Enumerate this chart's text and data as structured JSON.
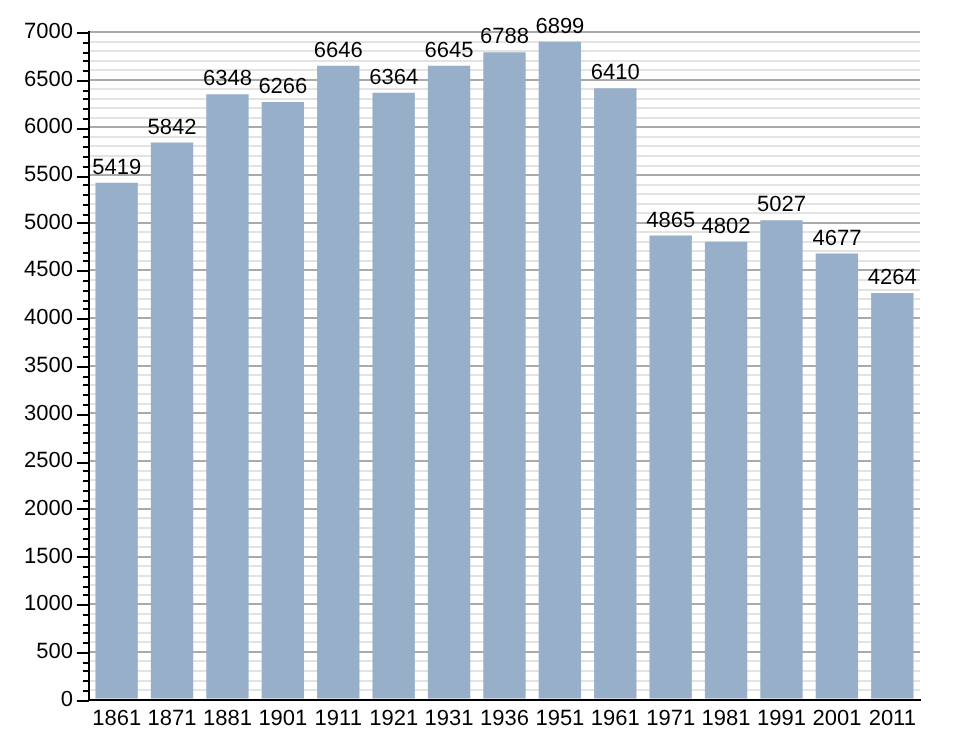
{
  "chart_data": {
    "type": "bar",
    "categories": [
      "1861",
      "1871",
      "1881",
      "1901",
      "1911",
      "1921",
      "1931",
      "1936",
      "1951",
      "1961",
      "1971",
      "1981",
      "1991",
      "2001",
      "2011"
    ],
    "values": [
      5419,
      5842,
      6348,
      6266,
      6646,
      6364,
      6645,
      6788,
      6899,
      6410,
      4865,
      4802,
      5027,
      4677,
      4264
    ],
    "color": "#98afc9",
    "ylim": [
      0,
      7000
    ],
    "yticks": [
      0,
      {
        "value": 100,
        "label": null
      },
      {
        "value": 200,
        "label": null
      },
      {
        "value": 300,
        "label": null
      },
      {
        "value": 400,
        "label": null
      },
      500,
      {
        "value": 600,
        "label": null
      },
      {
        "value": 700,
        "label": null
      },
      {
        "value": 800,
        "label": null
      },
      {
        "value": 900,
        "label": null
      },
      1000,
      {
        "value": 1100,
        "label": null
      },
      {
        "value": 1200,
        "label": null
      },
      {
        "value": 1300,
        "label": null
      },
      {
        "value": 1400,
        "label": null
      },
      1500,
      {
        "value": 1600,
        "label": null
      },
      {
        "value": 1700,
        "label": null
      },
      {
        "value": 1800,
        "label": null
      },
      {
        "value": 1900,
        "label": null
      },
      2000,
      {
        "value": 2100,
        "label": null
      },
      {
        "value": 2200,
        "label": null
      },
      {
        "value": 2300,
        "label": null
      },
      {
        "value": 2400,
        "label": null
      },
      2500,
      {
        "value": 2600,
        "label": null
      },
      {
        "value": 2700,
        "label": null
      },
      {
        "value": 2800,
        "label": null
      },
      {
        "value": 2900,
        "label": null
      },
      3000,
      {
        "value": 3100,
        "label": null
      },
      {
        "value": 3200,
        "label": null
      },
      {
        "value": 3300,
        "label": null
      },
      {
        "value": 3400,
        "label": null
      },
      3500,
      {
        "value": 3600,
        "label": null
      },
      {
        "value": 3700,
        "label": null
      },
      {
        "value": 3800,
        "label": null
      },
      {
        "value": 3900,
        "label": null
      },
      4000,
      {
        "value": 4100,
        "label": null
      },
      {
        "value": 4200,
        "label": null
      },
      {
        "value": 4300,
        "label": null
      },
      {
        "value": 4400,
        "label": null
      },
      4500,
      {
        "value": 4600,
        "label": null
      },
      {
        "value": 4700,
        "label": null
      },
      {
        "value": 4800,
        "label": null
      },
      {
        "value": 4900,
        "label": null
      },
      5000,
      {
        "value": 5100,
        "label": null
      },
      {
        "value": 5200,
        "label": null
      },
      {
        "value": 5300,
        "label": null
      },
      {
        "value": 5400,
        "label": null
      },
      5500,
      {
        "value": 5600,
        "label": null
      },
      {
        "value": 5700,
        "label": null
      },
      {
        "value": 5800,
        "label": null
      },
      {
        "value": 5900,
        "label": null
      },
      6000,
      {
        "value": 6100,
        "label": null
      },
      {
        "value": 6200,
        "label": null
      },
      {
        "value": 6300,
        "label": null
      },
      {
        "value": 6400,
        "label": null
      },
      6500,
      {
        "value": 6600,
        "label": null
      },
      {
        "value": 6700,
        "label": null
      },
      {
        "value": 6800,
        "label": null
      },
      {
        "value": 6900,
        "label": null
      },
      7000
    ],
    "grid": "y",
    "data_labels": true
  }
}
